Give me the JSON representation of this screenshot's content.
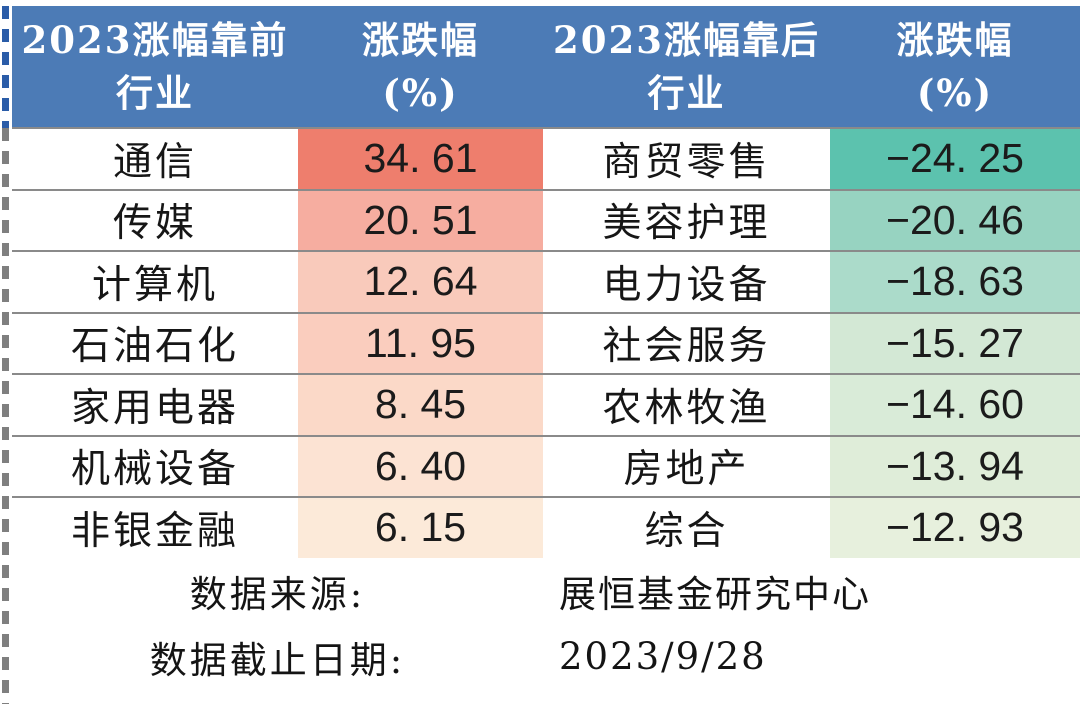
{
  "colors": {
    "header_bg": "#4c7bb6",
    "separator": "#8a8a8a",
    "dash_gray": "#7f7f7f",
    "dash_blue": "#2a5ca8"
  },
  "header": {
    "gainers_line1": "2023涨幅靠前",
    "gainers_line2": "行业",
    "gainers_change_line1": "涨跌幅",
    "gainers_change_line2": "(%)",
    "losers_line1": "2023涨幅靠后",
    "losers_line2": "行业",
    "losers_change_line1": "涨跌幅",
    "losers_change_line2": "(%)"
  },
  "rows": [
    {
      "gainer": "通信",
      "gain": "34. 61",
      "gain_bg": "#ee7e6d",
      "loser": "商贸零售",
      "loss": "−24. 25",
      "loss_bg": "#5cc2ae"
    },
    {
      "gainer": "传媒",
      "gain": "20. 51",
      "gain_bg": "#f6ada0",
      "loser": "美容护理",
      "loss": "−20. 46",
      "loss_bg": "#97d3c1"
    },
    {
      "gainer": "计算机",
      "gain": "12. 64",
      "gain_bg": "#f9cabb",
      "loser": "电力设备",
      "loss": "−18. 63",
      "loss_bg": "#abdbca"
    },
    {
      "gainer": "石油石化",
      "gain": "11. 95",
      "gain_bg": "#facdbe",
      "loser": "社会服务",
      "loss": "−15. 27",
      "loss_bg": "#d3e8d5"
    },
    {
      "gainer": "家用电器",
      "gain": "8. 45",
      "gain_bg": "#fbd9c8",
      "loser": "农林牧渔",
      "loss": "−14. 60",
      "loss_bg": "#d9ebd8"
    },
    {
      "gainer": "机械设备",
      "gain": "6. 40",
      "gain_bg": "#fce3d3",
      "loser": "房地产",
      "loss": "−13. 94",
      "loss_bg": "#dfedd9"
    },
    {
      "gainer": "非银金融",
      "gain": "6. 15",
      "gain_bg": "#fcead9",
      "loser": "综合",
      "loss": "−12. 93",
      "loss_bg": "#e7f0dd"
    }
  ],
  "footer": {
    "source_label": "数据来源:",
    "source_value": "展恒基金研究中心",
    "date_label": "数据截止日期:",
    "date_value": "2023/9/28"
  },
  "chart_data": {
    "type": "table",
    "columns": [
      "2023涨幅靠前行业",
      "涨跌幅(%)",
      "2023涨幅靠后行业",
      "涨跌幅(%)"
    ],
    "top_gainers": {
      "categories": [
        "通信",
        "传媒",
        "计算机",
        "石油石化",
        "家用电器",
        "机械设备",
        "非银金融"
      ],
      "values": [
        34.61,
        20.51,
        12.64,
        11.95,
        8.45,
        6.4,
        6.15
      ]
    },
    "top_losers": {
      "categories": [
        "商贸零售",
        "美容护理",
        "电力设备",
        "社会服务",
        "农林牧渔",
        "房地产",
        "综合"
      ],
      "values": [
        -24.25,
        -20.46,
        -18.63,
        -15.27,
        -14.6,
        -13.94,
        -12.93
      ]
    },
    "source": "展恒基金研究中心",
    "as_of_date": "2023/9/28"
  }
}
